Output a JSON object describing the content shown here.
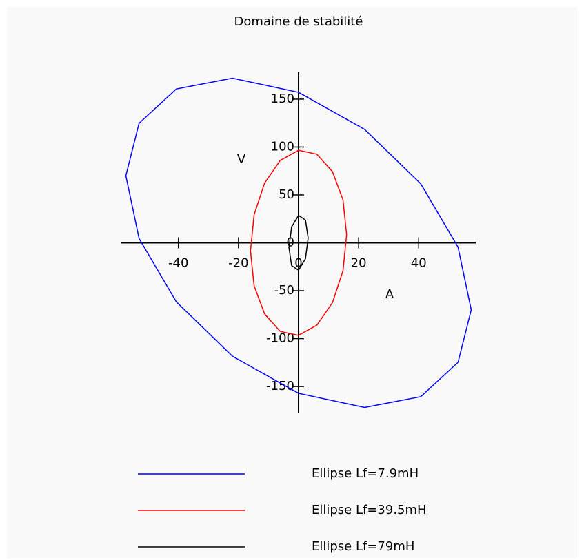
{
  "chart_data": {
    "type": "line",
    "title": "Domaine de stabilité",
    "xlabel": "A",
    "ylabel": "V",
    "xlim": [
      -59,
      59
    ],
    "ylim": [
      -178,
      178
    ],
    "xticks": [
      -40,
      -20,
      0,
      20,
      40
    ],
    "yticks": [
      -150,
      -100,
      -50,
      0,
      50,
      100,
      150
    ],
    "series": [
      {
        "name": "Ellipse Lf=7.9mH",
        "color": "#0000ff",
        "x": [
          57.5,
          53.1,
          40.7,
          22.0,
          0,
          -22.0,
          -40.7,
          -53.1,
          -57.5,
          -53.1,
          -40.7,
          -22.0,
          0,
          22.0,
          40.7,
          53.1,
          57.5
        ],
        "values": [
          -70.0,
          -4.5,
          61.6,
          118.4,
          157.1,
          171.9,
          160.6,
          124.8,
          70.0,
          4.5,
          -61.6,
          -118.4,
          -157.1,
          -171.9,
          -160.6,
          -124.8,
          -70.0
        ]
      },
      {
        "name": "Ellipse Lf=39.5mH",
        "color": "#ff0000",
        "x": [
          16,
          14.8,
          11.3,
          6.1,
          0,
          -6.1,
          -11.3,
          -14.8,
          -16,
          -14.8,
          -11.3,
          -6.1,
          0,
          6.1,
          11.3,
          14.8,
          16
        ],
        "values": [
          8.5,
          44.8,
          74.3,
          92.5,
          96.6,
          86.0,
          62.4,
          29.2,
          -8.5,
          -44.8,
          -74.3,
          -92.5,
          -96.6,
          -86.0,
          -62.4,
          -29.2,
          8.5
        ]
      },
      {
        "name": "Ellipse Lf=79mH",
        "color": "#000000",
        "x": [
          3.2,
          2.3,
          0,
          -2.3,
          -3.2,
          -2.3,
          0,
          2.3,
          3.2
        ],
        "values": [
          5.0,
          23.8,
          28.6,
          16.6,
          -5.0,
          -23.8,
          -28.6,
          -16.6,
          5.0
        ]
      }
    ]
  }
}
